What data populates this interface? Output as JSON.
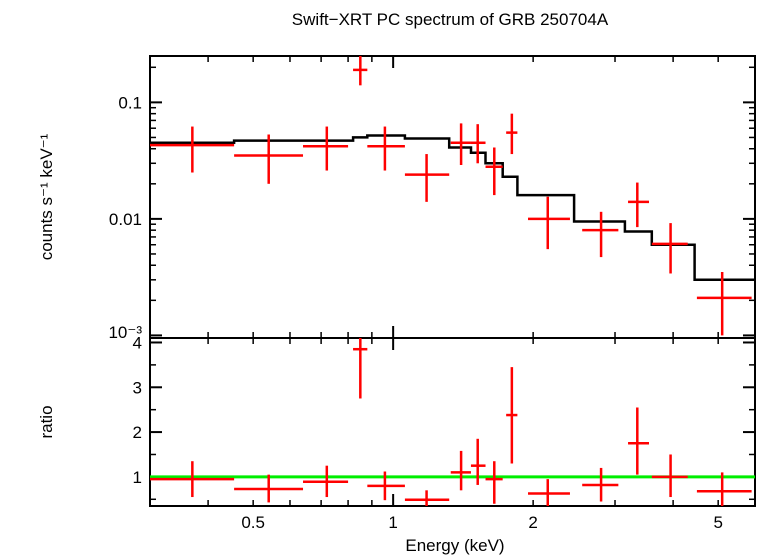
{
  "chart_data": {
    "type": "scatter",
    "title": "Swift−XRT PC spectrum of GRB 250704A",
    "xlabel": "Energy (keV)",
    "x_scale": "log",
    "xlim": [
      0.3,
      6.0
    ],
    "x_ticks": [
      {
        "value": 0.5,
        "label": "0.5"
      },
      {
        "value": 1,
        "label": "1"
      },
      {
        "value": 2,
        "label": "2"
      },
      {
        "value": 5,
        "label": "5"
      }
    ],
    "panels": [
      {
        "id": "spectrum",
        "ylabel": "counts s⁻¹ keV⁻¹",
        "y_scale": "log",
        "ylim": [
          0.00095,
          0.25
        ],
        "y_ticks": [
          {
            "value": 0.1,
            "label": "0.1"
          },
          {
            "value": 0.01,
            "label": "0.01"
          },
          {
            "value": 0.001,
            "label": "10⁻³"
          }
        ],
        "data_color": "#ff0000",
        "data": [
          {
            "x": 0.37,
            "xlo": 0.3,
            "xhi": 0.455,
            "y": 0.043,
            "ylo": 0.025,
            "yhi": 0.062
          },
          {
            "x": 0.54,
            "xlo": 0.455,
            "xhi": 0.64,
            "y": 0.035,
            "ylo": 0.02,
            "yhi": 0.053
          },
          {
            "x": 0.72,
            "xlo": 0.64,
            "xhi": 0.8,
            "y": 0.042,
            "ylo": 0.026,
            "yhi": 0.062
          },
          {
            "x": 0.85,
            "xlo": 0.82,
            "xhi": 0.88,
            "y": 0.19,
            "ylo": 0.14,
            "yhi": 0.25
          },
          {
            "x": 0.96,
            "xlo": 0.88,
            "xhi": 1.06,
            "y": 0.042,
            "ylo": 0.026,
            "yhi": 0.062
          },
          {
            "x": 1.18,
            "xlo": 1.06,
            "xhi": 1.32,
            "y": 0.024,
            "ylo": 0.014,
            "yhi": 0.036
          },
          {
            "x": 1.4,
            "xlo": 1.33,
            "xhi": 1.47,
            "y": 0.045,
            "ylo": 0.029,
            "yhi": 0.066
          },
          {
            "x": 1.52,
            "xlo": 1.47,
            "xhi": 1.58,
            "y": 0.045,
            "ylo": 0.03,
            "yhi": 0.065
          },
          {
            "x": 1.65,
            "xlo": 1.58,
            "xhi": 1.72,
            "y": 0.028,
            "ylo": 0.016,
            "yhi": 0.041
          },
          {
            "x": 1.8,
            "xlo": 1.75,
            "xhi": 1.85,
            "y": 0.055,
            "ylo": 0.036,
            "yhi": 0.08
          },
          {
            "x": 2.15,
            "xlo": 1.95,
            "xhi": 2.4,
            "y": 0.01,
            "ylo": 0.0055,
            "yhi": 0.0155
          },
          {
            "x": 2.8,
            "xlo": 2.55,
            "xhi": 3.05,
            "y": 0.008,
            "ylo": 0.0047,
            "yhi": 0.0115
          },
          {
            "x": 3.35,
            "xlo": 3.2,
            "xhi": 3.55,
            "y": 0.014,
            "ylo": 0.0085,
            "yhi": 0.0205
          },
          {
            "x": 3.95,
            "xlo": 3.6,
            "xhi": 4.3,
            "y": 0.0061,
            "ylo": 0.0034,
            "yhi": 0.0092
          },
          {
            "x": 5.1,
            "xlo": 4.5,
            "xhi": 5.9,
            "y": 0.0021,
            "ylo": 0.001,
            "yhi": 0.0035
          }
        ],
        "model_color": "#000000",
        "model_steps": [
          {
            "xlo": 0.3,
            "xhi": 0.455,
            "y": 0.045
          },
          {
            "xlo": 0.455,
            "xhi": 0.64,
            "y": 0.047
          },
          {
            "xlo": 0.64,
            "xhi": 0.82,
            "y": 0.047
          },
          {
            "xlo": 0.82,
            "xhi": 0.88,
            "y": 0.05
          },
          {
            "xlo": 0.88,
            "xhi": 1.06,
            "y": 0.052
          },
          {
            "xlo": 1.06,
            "xhi": 1.32,
            "y": 0.049
          },
          {
            "xlo": 1.32,
            "xhi": 1.47,
            "y": 0.041
          },
          {
            "xlo": 1.47,
            "xhi": 1.58,
            "y": 0.037
          },
          {
            "xlo": 1.58,
            "xhi": 1.72,
            "y": 0.03
          },
          {
            "xlo": 1.72,
            "xhi": 1.85,
            "y": 0.023
          },
          {
            "xlo": 1.85,
            "xhi": 2.45,
            "y": 0.016
          },
          {
            "xlo": 2.45,
            "xhi": 3.15,
            "y": 0.0095
          },
          {
            "xlo": 3.15,
            "xhi": 3.6,
            "y": 0.0078
          },
          {
            "xlo": 3.6,
            "xhi": 4.45,
            "y": 0.006
          },
          {
            "xlo": 4.45,
            "xhi": 6.0,
            "y": 0.003
          }
        ]
      },
      {
        "id": "ratio",
        "ylabel": "ratio",
        "y_scale": "linear",
        "ylim": [
          0.35,
          4.1
        ],
        "y_ticks": [
          {
            "value": 1,
            "label": "1"
          },
          {
            "value": 2,
            "label": "2"
          },
          {
            "value": 3,
            "label": "3"
          },
          {
            "value": 4,
            "label": "4"
          }
        ],
        "data_color": "#ff0000",
        "reference_line": {
          "y": 1,
          "color": "#00ee00"
        },
        "data": [
          {
            "x": 0.37,
            "xlo": 0.3,
            "xhi": 0.455,
            "y": 0.95,
            "ylo": 0.55,
            "yhi": 1.35
          },
          {
            "x": 0.54,
            "xlo": 0.455,
            "xhi": 0.64,
            "y": 0.73,
            "ylo": 0.43,
            "yhi": 1.05
          },
          {
            "x": 0.72,
            "xlo": 0.64,
            "xhi": 0.8,
            "y": 0.89,
            "ylo": 0.55,
            "yhi": 1.25
          },
          {
            "x": 0.85,
            "xlo": 0.82,
            "xhi": 0.88,
            "y": 3.85,
            "ylo": 2.75,
            "yhi": 4.1
          },
          {
            "x": 0.96,
            "xlo": 0.88,
            "xhi": 1.06,
            "y": 0.8,
            "ylo": 0.48,
            "yhi": 1.12
          },
          {
            "x": 1.18,
            "xlo": 1.06,
            "xhi": 1.32,
            "y": 0.49,
            "ylo": 0.35,
            "yhi": 0.7
          },
          {
            "x": 1.4,
            "xlo": 1.33,
            "xhi": 1.47,
            "y": 1.1,
            "ylo": 0.7,
            "yhi": 1.58
          },
          {
            "x": 1.52,
            "xlo": 1.47,
            "xhi": 1.58,
            "y": 1.25,
            "ylo": 0.82,
            "yhi": 1.85
          },
          {
            "x": 1.65,
            "xlo": 1.58,
            "xhi": 1.72,
            "y": 0.95,
            "ylo": 0.4,
            "yhi": 1.35
          },
          {
            "x": 1.8,
            "xlo": 1.75,
            "xhi": 1.85,
            "y": 2.38,
            "ylo": 1.3,
            "yhi": 3.45
          },
          {
            "x": 2.15,
            "xlo": 1.95,
            "xhi": 2.4,
            "y": 0.63,
            "ylo": 0.35,
            "yhi": 0.95
          },
          {
            "x": 2.8,
            "xlo": 2.55,
            "xhi": 3.05,
            "y": 0.82,
            "ylo": 0.45,
            "yhi": 1.2
          },
          {
            "x": 3.35,
            "xlo": 3.2,
            "xhi": 3.55,
            "y": 1.75,
            "ylo": 1.05,
            "yhi": 2.55
          },
          {
            "x": 3.95,
            "xlo": 3.6,
            "xhi": 4.3,
            "y": 1.0,
            "ylo": 0.55,
            "yhi": 1.5
          },
          {
            "x": 5.1,
            "xlo": 4.5,
            "xhi": 5.9,
            "y": 0.68,
            "ylo": 0.35,
            "yhi": 1.1
          }
        ]
      }
    ]
  }
}
